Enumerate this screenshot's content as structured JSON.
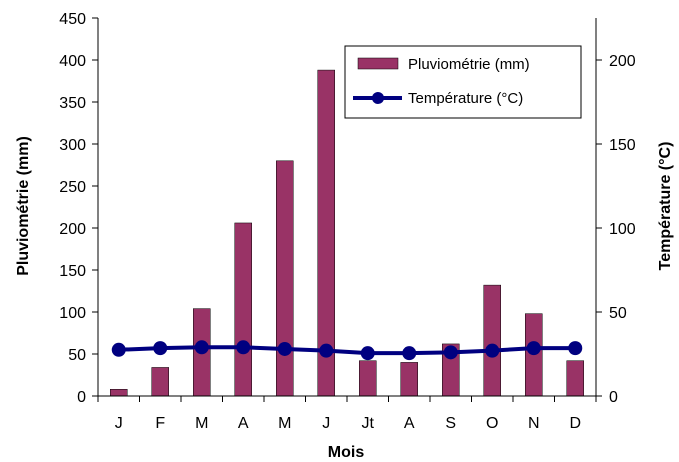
{
  "chart_data": {
    "type": "bar",
    "categories": [
      "J",
      "F",
      "M",
      "A",
      "M",
      "J",
      "Jt",
      "A",
      "S",
      "O",
      "N",
      "D"
    ],
    "series": [
      {
        "name": "Pluviométrie (mm)",
        "type": "bar",
        "axis": "left",
        "color": "#993366",
        "values": [
          8,
          34,
          104,
          206,
          280,
          388,
          42,
          40,
          62,
          132,
          98,
          42
        ]
      },
      {
        "name": "Température (°C)",
        "type": "line",
        "axis": "right",
        "color": "#000080",
        "values": [
          27.5,
          28.5,
          29,
          29,
          28,
          27,
          25.5,
          25.5,
          26,
          27,
          28.5,
          28.5
        ]
      }
    ],
    "xlabel": "Mois",
    "ylabel": "Pluviométrie (mm)",
    "y2label": "Température (°C)",
    "ylim": [
      0,
      450
    ],
    "y2lim": [
      0,
      225
    ],
    "yticks": [
      "0",
      "50",
      "100",
      "150",
      "200",
      "250",
      "300",
      "350",
      "400",
      "450"
    ],
    "y2ticks": [
      "0",
      "50",
      "100",
      "150",
      "200"
    ],
    "legend_position": "top-right",
    "grid": false
  }
}
